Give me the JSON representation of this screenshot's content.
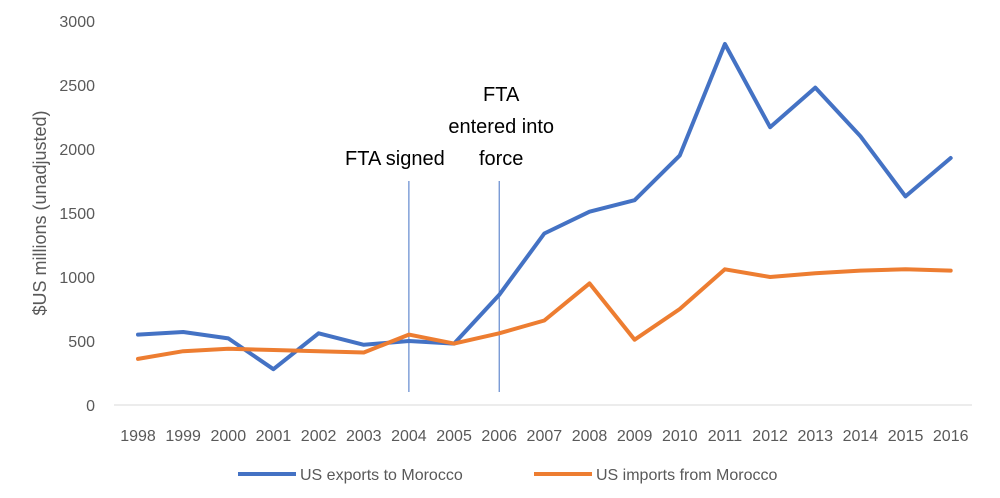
{
  "chart_data": {
    "type": "line",
    "ylabel": "$US millions (unadjusted)",
    "xlabel": "",
    "ylim": [
      0,
      3000
    ],
    "yticks": [
      0,
      500,
      1000,
      1500,
      2000,
      2500,
      3000
    ],
    "grid": false,
    "legend": "bottom",
    "categories": [
      "1998",
      "1999",
      "2000",
      "2001",
      "2002",
      "2003",
      "2004",
      "2005",
      "2006",
      "2007",
      "2008",
      "2009",
      "2010",
      "2011",
      "2012",
      "2013",
      "2014",
      "2015",
      "2016"
    ],
    "series": [
      {
        "name": "US exports to Morocco",
        "color": "#4472c4",
        "values": [
          550,
          570,
          520,
          280,
          560,
          470,
          500,
          480,
          860,
          1340,
          1510,
          1600,
          1950,
          2820,
          2170,
          2480,
          2100,
          1630,
          1930
        ]
      },
      {
        "name": "US imports from Morocco",
        "color": "#ed7d31",
        "values": [
          360,
          420,
          440,
          430,
          420,
          410,
          550,
          480,
          560,
          660,
          950,
          510,
          750,
          1060,
          1000,
          1030,
          1050,
          1060,
          1050
        ]
      }
    ],
    "annotations": [
      {
        "category": "2004",
        "lines": [
          "FTA signed"
        ],
        "color": "#4472c4"
      },
      {
        "category": "2006",
        "lines": [
          "FTA",
          "entered into",
          "force"
        ],
        "color": "#4472c4"
      }
    ]
  }
}
